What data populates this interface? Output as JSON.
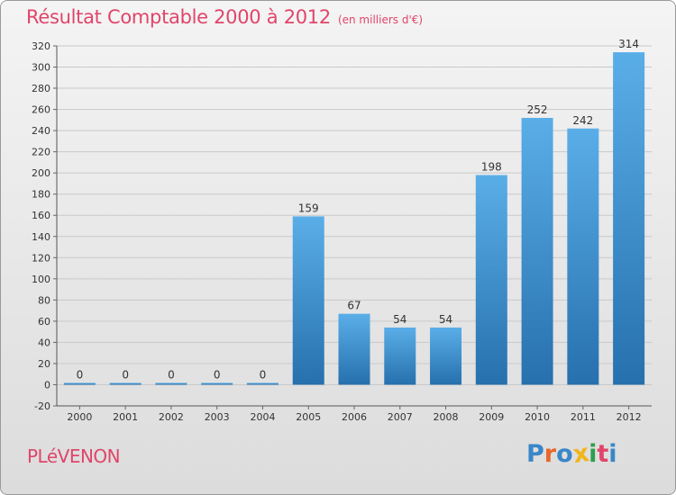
{
  "header": {
    "title": "Résultat Comptable 2000 à 2012",
    "subtitle": "(en milliers d'€)"
  },
  "footer": {
    "commune": "PLéVENON",
    "brand": "Proxiti",
    "brand_colors": [
      "#3a86c8",
      "#e8682c",
      "#3a86c8",
      "#f2b51a",
      "#2e9e4f",
      "#e0456a",
      "#3a86c8"
    ]
  },
  "colors": {
    "accent": "#e0456a",
    "bar_top": "#5aaee8",
    "bar_bottom": "#2670ad",
    "grid": "#c9c9c9"
  },
  "chart_data": {
    "type": "bar",
    "title": "Résultat Comptable 2000 à 2012",
    "subtitle": "(en milliers d'€)",
    "categories": [
      "2000",
      "2001",
      "2002",
      "2003",
      "2004",
      "2005",
      "2006",
      "2007",
      "2008",
      "2009",
      "2010",
      "2011",
      "2012"
    ],
    "values": [
      0,
      0,
      0,
      0,
      0,
      159,
      67,
      54,
      54,
      198,
      252,
      242,
      314
    ],
    "data_labels": [
      "0",
      "0",
      "0",
      "0",
      "0",
      "159",
      "67",
      "54",
      "54",
      "198",
      "252",
      "242",
      "314"
    ],
    "yticks": [
      -20,
      0,
      20,
      40,
      60,
      80,
      100,
      120,
      140,
      160,
      180,
      200,
      220,
      240,
      260,
      280,
      300,
      320
    ],
    "ylim": [
      -20,
      320
    ],
    "xlabel": "",
    "ylabel": "",
    "grid": true
  }
}
